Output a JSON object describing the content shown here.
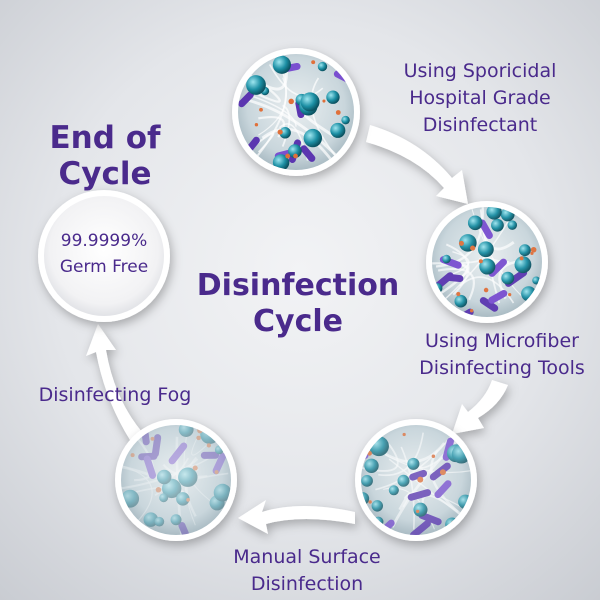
{
  "colors": {
    "text": "#4a2a8c",
    "arrow": "#ffffff",
    "ring": "#ffffff"
  },
  "center_title": [
    "Disinfection",
    "Cycle"
  ],
  "end_title": [
    "End of",
    "Cycle"
  ],
  "end_circle_text": [
    "99.9999%",
    "Germ Free"
  ],
  "steps": [
    {
      "label": [
        "Using Sporicidal",
        "Hospital Grade",
        "Disinfectant"
      ],
      "image_icon": "germ-microscope-icon"
    },
    {
      "label": [
        "Using Microfiber",
        "Disinfecting Tools"
      ],
      "image_icon": "germ-microscope-icon"
    },
    {
      "label": [
        "Manual Surface",
        "Disinfection"
      ],
      "image_icon": "germ-microscope-icon"
    },
    {
      "label": [
        "Disinfecting Fog"
      ],
      "image_icon": "germ-microscope-icon"
    }
  ]
}
